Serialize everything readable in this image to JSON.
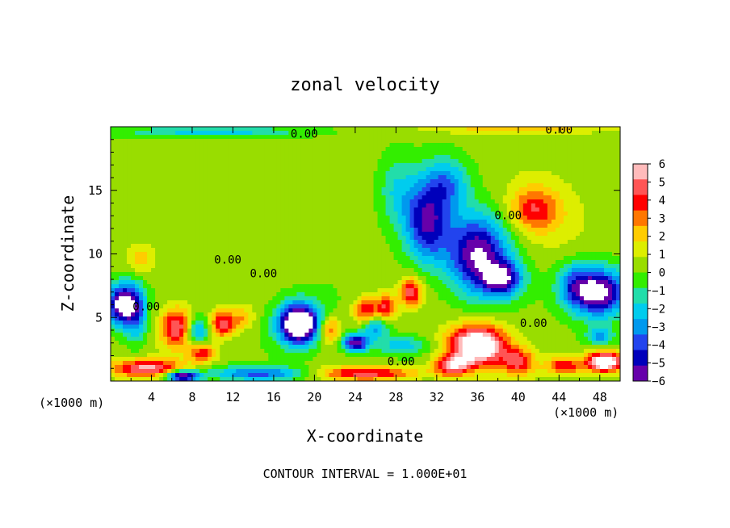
{
  "chart_data": {
    "type": "heatmap",
    "title": "zonal velocity",
    "xlabel": "X-coordinate",
    "ylabel": "Z-coordinate",
    "x_unit": "(×1000 m)",
    "y_unit": "(×1000 m)",
    "footer": "CONTOUR INTERVAL = 1.000E+01",
    "xlim": [
      0,
      50
    ],
    "ylim": [
      0,
      20
    ],
    "xticks": [
      "4",
      "8",
      "12",
      "16",
      "20",
      "24",
      "28",
      "32",
      "36",
      "40",
      "44",
      "48"
    ],
    "yticks": [
      "5",
      "10",
      "15"
    ],
    "colorbar": {
      "ticks": [
        "6",
        "5",
        "4",
        "3",
        "2",
        "1",
        "0",
        "−1",
        "−2",
        "−3",
        "−4",
        "−5",
        "−6"
      ],
      "range": [
        -6,
        6
      ],
      "colors": [
        "#ffbbbb",
        "#ff5555",
        "#ff0000",
        "#ff7700",
        "#ffcc00",
        "#ddee00",
        "#99dd00",
        "#33ee00",
        "#22ddaa",
        "#00ccee",
        "#0099ee",
        "#2244ee",
        "#0000bb",
        "#6600aa"
      ]
    },
    "contour_labels": [
      {
        "text": "0.00",
        "x": 19,
        "y": 19.4
      },
      {
        "text": "0.00",
        "x": 44,
        "y": 19.7
      },
      {
        "text": "0.00",
        "x": 39,
        "y": 13
      },
      {
        "text": "0.00",
        "x": 11.5,
        "y": 9.5
      },
      {
        "text": "0.00",
        "x": 15,
        "y": 8.4
      },
      {
        "text": "0.00",
        "x": 3.5,
        "y": 5.8
      },
      {
        "text": "0.00",
        "x": 41.5,
        "y": 4.5
      },
      {
        "text": "0.00",
        "x": 28.5,
        "y": 1.5
      }
    ],
    "blobs": [
      {
        "x": 31,
        "y": 12.5,
        "rx": 2.5,
        "ry": 3.5,
        "v": -5.5
      },
      {
        "x": 36,
        "y": 10,
        "rx": 3.5,
        "ry": 3.5,
        "v": -6.5
      },
      {
        "x": 38.5,
        "y": 8,
        "rx": 2.2,
        "ry": 1.5,
        "v": -5
      },
      {
        "x": 33,
        "y": 15.5,
        "rx": 2.5,
        "ry": 2.2,
        "v": -3
      },
      {
        "x": 28,
        "y": 15,
        "rx": 2,
        "ry": 3,
        "v": -1.8
      },
      {
        "x": 41.5,
        "y": 13.5,
        "rx": 2.5,
        "ry": 1.8,
        "v": 3
      },
      {
        "x": 43,
        "y": 13,
        "rx": 5,
        "ry": 3.5,
        "v": 1.2
      },
      {
        "x": 48,
        "y": 7,
        "rx": 3,
        "ry": 2.2,
        "v": -7
      },
      {
        "x": 45.5,
        "y": 7.5,
        "rx": 2,
        "ry": 2,
        "v": -3
      },
      {
        "x": 1,
        "y": 6,
        "rx": 1.5,
        "ry": 1.8,
        "v": -7
      },
      {
        "x": 2.5,
        "y": 5.5,
        "rx": 1.2,
        "ry": 2.5,
        "v": -4
      },
      {
        "x": 3,
        "y": 9.5,
        "rx": 1.8,
        "ry": 1.5,
        "v": 2
      },
      {
        "x": 6.5,
        "y": 4.2,
        "rx": 1.8,
        "ry": 1.8,
        "v": 5
      },
      {
        "x": 8.5,
        "y": 4,
        "rx": 1.3,
        "ry": 1.3,
        "v": -3.5
      },
      {
        "x": 9,
        "y": 2.2,
        "rx": 1.5,
        "ry": 0.8,
        "v": 4
      },
      {
        "x": 11,
        "y": 4.5,
        "rx": 1.4,
        "ry": 1.2,
        "v": 4.5
      },
      {
        "x": 13,
        "y": 5,
        "rx": 1.2,
        "ry": 1,
        "v": 2
      },
      {
        "x": 18.5,
        "y": 4.5,
        "rx": 2,
        "ry": 1.6,
        "v": -7
      },
      {
        "x": 18.5,
        "y": 4.5,
        "rx": 3,
        "ry": 2.2,
        "v": -3
      },
      {
        "x": 21.5,
        "y": 4,
        "rx": 1.3,
        "ry": 1.3,
        "v": 3.5
      },
      {
        "x": 25,
        "y": 5.5,
        "rx": 1.3,
        "ry": 1.2,
        "v": 4
      },
      {
        "x": 26,
        "y": 4.3,
        "rx": 1.5,
        "ry": 1,
        "v": -3.5
      },
      {
        "x": 24,
        "y": 3,
        "rx": 1.5,
        "ry": 0.8,
        "v": -6
      },
      {
        "x": 27,
        "y": 5.8,
        "rx": 1.2,
        "ry": 1.2,
        "v": 4
      },
      {
        "x": 29.5,
        "y": 7,
        "rx": 1.2,
        "ry": 1.3,
        "v": 4.5
      },
      {
        "x": 28.5,
        "y": 2.8,
        "rx": 3,
        "ry": 0.8,
        "v": -2.5
      },
      {
        "x": 36,
        "y": 2.8,
        "rx": 3.2,
        "ry": 1.8,
        "v": 8
      },
      {
        "x": 33.5,
        "y": 1.2,
        "rx": 2,
        "ry": 0.9,
        "v": 5
      },
      {
        "x": 40,
        "y": 1.5,
        "rx": 1.8,
        "ry": 1.2,
        "v": 4
      },
      {
        "x": 44.5,
        "y": 1.2,
        "rx": 2,
        "ry": 0.8,
        "v": 4
      },
      {
        "x": 48.5,
        "y": 1.5,
        "rx": 2,
        "ry": 0.9,
        "v": 8
      },
      {
        "x": 48,
        "y": 3.5,
        "rx": 1.5,
        "ry": 0.8,
        "v": -3
      },
      {
        "x": 3.5,
        "y": 1,
        "rx": 4,
        "ry": 0.8,
        "v": 5
      },
      {
        "x": 15,
        "y": 0.6,
        "rx": 6,
        "ry": 0.6,
        "v": -4
      },
      {
        "x": 7,
        "y": 0.4,
        "rx": 1.8,
        "ry": 0.5,
        "v": -7
      },
      {
        "x": 25,
        "y": 0.6,
        "rx": 6,
        "ry": 0.6,
        "v": 4.5
      },
      {
        "x": 10,
        "y": 19.6,
        "rx": 10,
        "ry": 0.5,
        "v": -2.5
      },
      {
        "x": 40,
        "y": 19.8,
        "rx": 10,
        "ry": 0.4,
        "v": 2
      }
    ]
  }
}
